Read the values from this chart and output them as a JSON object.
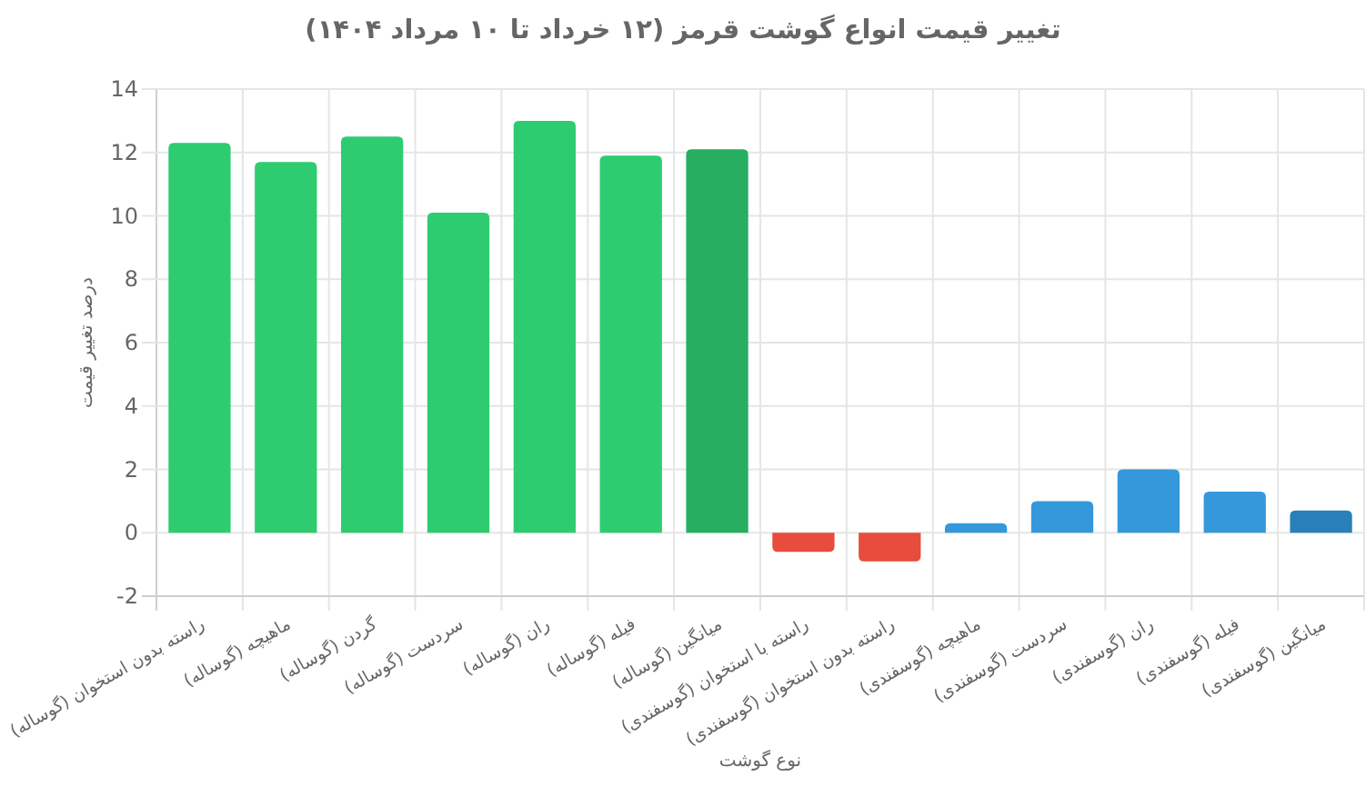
{
  "chart_data": {
    "type": "bar",
    "title": "تغییر قیمت انواع گوشت قرمز (۱۲ خرداد تا ۱۰ مرداد ۱۴۰۴)",
    "xlabel": "نوع گوشت",
    "ylabel": "درصد تغییر قیمت",
    "categories": [
      "راسته بدون استخوان (گوساله)",
      "ماهیچه (گوساله)",
      "گردن (گوساله)",
      "سردست (گوساله)",
      "ران (گوساله)",
      "فیله (گوساله)",
      "میانگین (گوساله)",
      "راسته با استخوان (گوسفندی)",
      "راسته بدون استخوان (گوسفندی)",
      "ماهیچه (گوسفندی)",
      "سردست (گوسفندی)",
      "ران (گوسفندی)",
      "فیله (گوسفندی)",
      "میانگین (گوسفندی)"
    ],
    "values": [
      12.3,
      11.7,
      12.5,
      10.1,
      13.0,
      11.9,
      12.1,
      -0.6,
      -0.9,
      0.3,
      1.0,
      2.0,
      1.3,
      0.7
    ],
    "colors": [
      "#2ecc71",
      "#2ecc71",
      "#2ecc71",
      "#2ecc71",
      "#2ecc71",
      "#2ecc71",
      "#27ae60",
      "#e74c3c",
      "#e74c3c",
      "#3498db",
      "#3498db",
      "#3498db",
      "#3498db",
      "#2980b9"
    ],
    "ylim": [
      -2,
      14
    ],
    "yticks": [
      -2,
      0,
      2,
      4,
      6,
      8,
      10,
      12,
      14
    ],
    "grid": true
  }
}
